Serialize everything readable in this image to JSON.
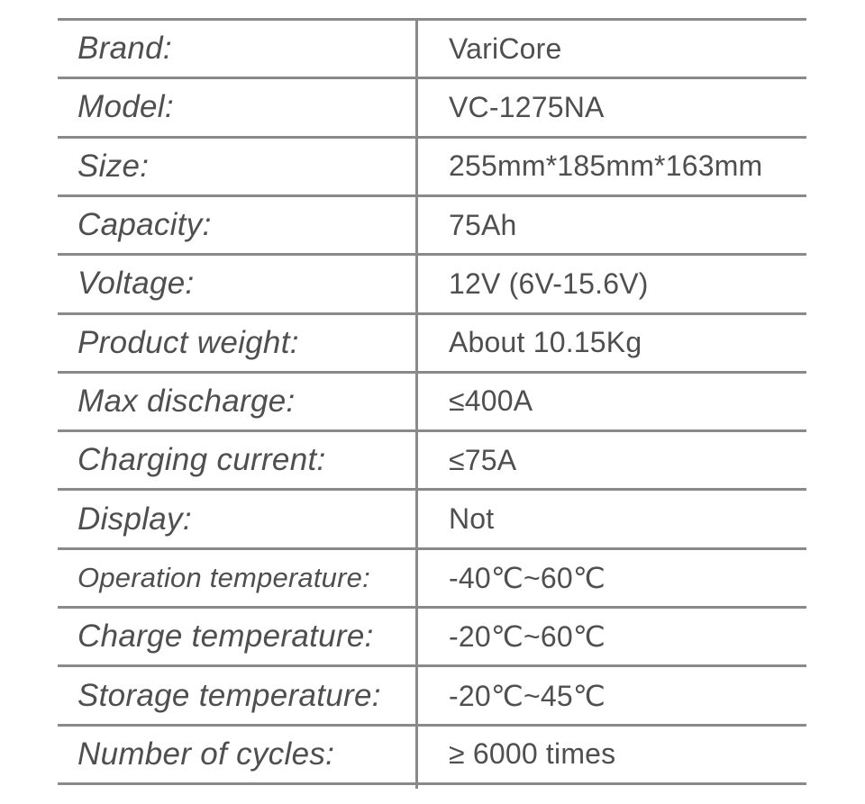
{
  "page": {
    "background_color": "#ffffff"
  },
  "spec_table": {
    "colors": {
      "text": "#4f4f4f",
      "grid_line": "#8a8a8a"
    },
    "rows": [
      {
        "label": "Brand:",
        "value": "VariCore"
      },
      {
        "label": "Model:",
        "value": "VC-1275NA"
      },
      {
        "label": "Size:",
        "value": "255mm*185mm*163mm"
      },
      {
        "label": "Capacity:",
        "value": "75Ah"
      },
      {
        "label": "Voltage:",
        "value": "12V (6V-15.6V)"
      },
      {
        "label": "Product weight:",
        "value": "About 10.15Kg"
      },
      {
        "label": "Max discharge:",
        "value": "≤400A"
      },
      {
        "label": "Charging current:",
        "value": "≤75A"
      },
      {
        "label": "Display:",
        "value": "Not"
      },
      {
        "label": "Operation temperature:",
        "value": "-40℃~60℃"
      },
      {
        "label": "Charge temperature:",
        "value": "-20℃~60℃"
      },
      {
        "label": "Storage temperature:",
        "value": "-20℃~45℃"
      },
      {
        "label": "Number of cycles:",
        "value": "≥ 6000 times"
      }
    ]
  }
}
